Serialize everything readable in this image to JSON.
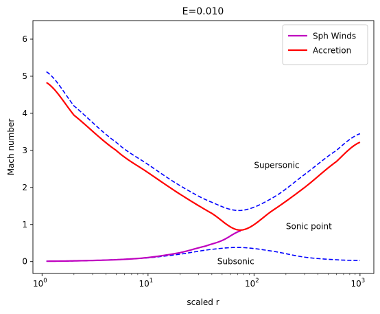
{
  "chart_data": {
    "type": "line",
    "title": "E=0.010",
    "xlabel": "scaled r",
    "ylabel": "Mach number",
    "xscale": "log",
    "xlim": [
      0.82,
      1350
    ],
    "ylim": [
      -0.32,
      6.5
    ],
    "xticks": [
      {
        "value": 1,
        "base": "10",
        "exp": "0"
      },
      {
        "value": 10,
        "base": "10",
        "exp": "1"
      },
      {
        "value": 100,
        "base": "10",
        "exp": "2"
      },
      {
        "value": 1000,
        "base": "10",
        "exp": "3"
      }
    ],
    "yticks": [
      0,
      1,
      2,
      3,
      4,
      5,
      6
    ],
    "grid": false,
    "legend_position": "top-right",
    "series": [
      {
        "name": "Sph Winds",
        "color": "#bf00bf",
        "style": "solid",
        "x": [
          1.1,
          2,
          5,
          10,
          20,
          35,
          50,
          75
        ],
        "y": [
          0.01,
          0.02,
          0.05,
          0.11,
          0.24,
          0.42,
          0.57,
          0.83
        ]
      },
      {
        "name": "Accretion",
        "color": "#ff0000",
        "style": "solid",
        "x": [
          1.1,
          2,
          5,
          10,
          20,
          40,
          75,
          150,
          300,
          600,
          1000
        ],
        "y": [
          4.83,
          3.95,
          3.0,
          2.4,
          1.82,
          1.3,
          0.85,
          1.38,
          2.0,
          2.7,
          3.22
        ]
      },
      {
        "name": "",
        "color": "#0000ff",
        "style": "dashed",
        "x": [
          1.1,
          2,
          5,
          10,
          20,
          40,
          75,
          150,
          300,
          600,
          1000
        ],
        "y": [
          5.12,
          4.2,
          3.22,
          2.62,
          2.05,
          1.6,
          1.38,
          1.72,
          2.35,
          3.0,
          3.45
        ]
      },
      {
        "name": "",
        "color": "#0000ff",
        "style": "dashed",
        "x": [
          1.1,
          3,
          10,
          20,
          40,
          75,
          150,
          300,
          600,
          1000
        ],
        "y": [
          0.01,
          0.03,
          0.1,
          0.2,
          0.33,
          0.38,
          0.28,
          0.12,
          0.05,
          0.03
        ]
      }
    ],
    "annotations": [
      {
        "text": "Supersonic",
        "x": 100,
        "y": 2.6
      },
      {
        "text": "Sonic point",
        "x": 200,
        "y": 0.95
      },
      {
        "text": "Subsonic",
        "x": 45,
        "y": 0.0
      }
    ]
  }
}
